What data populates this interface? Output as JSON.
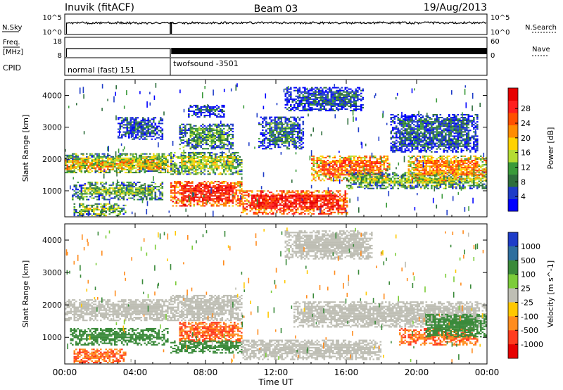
{
  "header": {
    "station": "Inuvik (fitACF)",
    "beam": "Beam 03",
    "date": "19/Aug/2013"
  },
  "nsky_panel": {
    "left_label": "N.Sky",
    "right_label": "N.Search",
    "left_ticks": [
      "10^5",
      "10^0"
    ],
    "right_ticks": [
      "10^5",
      "10^0"
    ]
  },
  "freq_panel": {
    "left_label": "Freq.",
    "left_unit": "[MHz]",
    "right_label": "Nave",
    "left_ticks": [
      "18",
      "8"
    ],
    "right_ticks": [
      "60",
      "0"
    ]
  },
  "cpid_panel": {
    "label": "CPID",
    "modes": [
      {
        "name": "normal (fast) 151",
        "start": 0.0,
        "end": 6.0
      },
      {
        "name": "twofsound -3501",
        "start": 6.0,
        "end": 24.0
      }
    ]
  },
  "chart_data": [
    {
      "type": "heatmap",
      "title": "",
      "xlabel": "",
      "ylabel": "Slant Range [km]",
      "xlim": [
        0,
        24
      ],
      "ylim": [
        180,
        4500
      ],
      "x_ticks": [
        "00:00",
        "04:00",
        "08:00",
        "12:00",
        "16:00",
        "20:00",
        "00:00"
      ],
      "y_ticks": [
        1000,
        2000,
        3000,
        4000
      ],
      "colorbar": {
        "label": "Power [dB]",
        "ticks": [
          "4",
          "8",
          "12",
          "16",
          "20",
          "24",
          "28"
        ],
        "colors": [
          "#0000ff",
          "#1e3cc8",
          "#2e6e3c",
          "#3a9a3a",
          "#b4dc32",
          "#ffd200",
          "#ff8c00",
          "#ff5000",
          "#ff1e1e",
          "#e60000"
        ]
      },
      "features": [
        {
          "t0": 0.0,
          "t1": 6.0,
          "r0": 1550,
          "r1": 2150,
          "value": 14
        },
        {
          "t0": 0.0,
          "t1": 6.0,
          "r0": 1650,
          "r1": 1950,
          "value": 22
        },
        {
          "t0": 0.4,
          "t1": 5.5,
          "r0": 700,
          "r1": 1250,
          "value": 12
        },
        {
          "t0": 0.5,
          "t1": 3.5,
          "r0": 200,
          "r1": 600,
          "value": 14
        },
        {
          "t0": 3.0,
          "t1": 5.5,
          "r0": 2600,
          "r1": 3300,
          "value": 6
        },
        {
          "t0": 6.0,
          "t1": 10.0,
          "r0": 1500,
          "r1": 2200,
          "value": 14
        },
        {
          "t0": 6.0,
          "t1": 10.0,
          "r0": 500,
          "r1": 1300,
          "value": 26
        },
        {
          "t0": 6.5,
          "t1": 9.5,
          "r0": 2300,
          "r1": 3100,
          "value": 10
        },
        {
          "t0": 7.0,
          "t1": 9.0,
          "r0": 3300,
          "r1": 3700,
          "value": 7
        },
        {
          "t0": 10.0,
          "t1": 16.0,
          "r0": 250,
          "r1": 1000,
          "value": 26
        },
        {
          "t0": 11.0,
          "t1": 13.5,
          "r0": 2300,
          "r1": 3300,
          "value": 8
        },
        {
          "t0": 12.5,
          "t1": 17.0,
          "r0": 3500,
          "r1": 4250,
          "value": 6
        },
        {
          "t0": 14.0,
          "t1": 18.5,
          "r0": 1300,
          "r1": 2100,
          "value": 22
        },
        {
          "t0": 16.0,
          "t1": 24.0,
          "r0": 1050,
          "r1": 1550,
          "value": 13
        },
        {
          "t0": 19.5,
          "t1": 24.0,
          "r0": 1300,
          "r1": 2100,
          "value": 20
        },
        {
          "t0": 18.5,
          "t1": 23.5,
          "r0": 2200,
          "r1": 3400,
          "value": 6
        }
      ]
    },
    {
      "type": "heatmap",
      "title": "",
      "xlabel": "Time UT",
      "ylabel": "Slant Range [km]",
      "xlim": [
        0,
        24
      ],
      "ylim": [
        180,
        4500
      ],
      "x_ticks": [
        "00:00",
        "04:00",
        "08:00",
        "12:00",
        "16:00",
        "20:00",
        "00:00"
      ],
      "y_ticks": [
        1000,
        2000,
        3000,
        4000
      ],
      "colorbar": {
        "label": "Velocity [m s^-1]",
        "ticks": [
          "1000",
          "500",
          "100",
          "25",
          "-25",
          "-100",
          "-500",
          "-1000"
        ],
        "colors": [
          "#1e3cc8",
          "#2e6e9e",
          "#3a8a3a",
          "#7ccc3a",
          "#bebeb4",
          "#ffc800",
          "#ff8c1e",
          "#ff3c1e",
          "#e60000"
        ]
      },
      "features": [
        {
          "t0": 0.0,
          "t1": 6.0,
          "r0": 1500,
          "r1": 2150,
          "value": 0
        },
        {
          "t0": 0.3,
          "t1": 5.8,
          "r0": 750,
          "r1": 1250,
          "value": 150
        },
        {
          "t0": 0.5,
          "t1": 3.5,
          "r0": 200,
          "r1": 650,
          "value": -300
        },
        {
          "t0": 6.0,
          "t1": 10.0,
          "r0": 1500,
          "r1": 2300,
          "value": 0
        },
        {
          "t0": 6.5,
          "t1": 10.0,
          "r0": 850,
          "r1": 1450,
          "value": -300
        },
        {
          "t0": 6.0,
          "t1": 10.0,
          "r0": 500,
          "r1": 900,
          "value": 150
        },
        {
          "t0": 10.0,
          "t1": 18.0,
          "r0": 300,
          "r1": 900,
          "value": 0
        },
        {
          "t0": 13.0,
          "t1": 24.0,
          "r0": 1300,
          "r1": 2100,
          "value": 0
        },
        {
          "t0": 12.5,
          "t1": 17.5,
          "r0": 3400,
          "r1": 4300,
          "value": 0
        },
        {
          "t0": 19.0,
          "t1": 23.5,
          "r0": 750,
          "r1": 1250,
          "value": -300
        },
        {
          "t0": 20.5,
          "t1": 24.0,
          "r0": 1000,
          "r1": 1700,
          "value": 150
        }
      ]
    }
  ]
}
